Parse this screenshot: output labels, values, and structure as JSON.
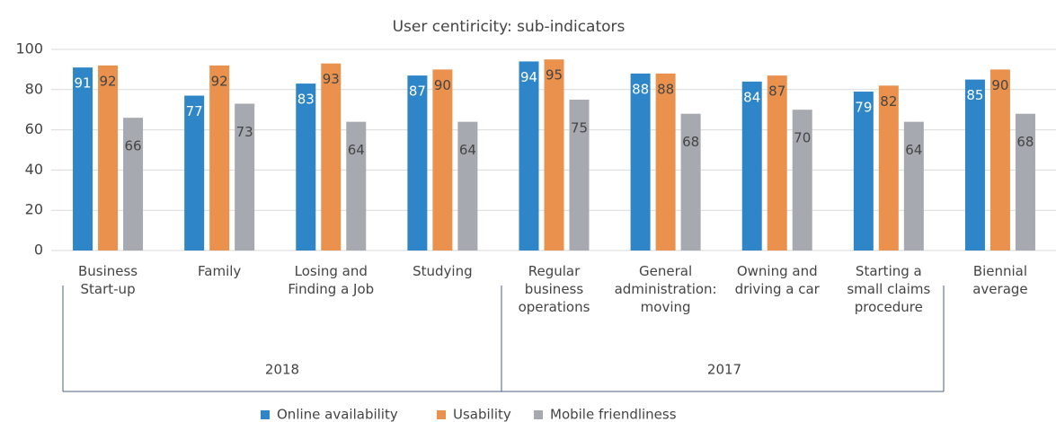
{
  "chart_data": {
    "type": "bar",
    "title": "User centiricity: sub-indicators",
    "categories": [
      [
        "Business",
        "Start-up"
      ],
      [
        "Family"
      ],
      [
        "Losing and",
        "Finding a Job"
      ],
      [
        "Studying"
      ],
      [
        "Regular",
        "business",
        "operations"
      ],
      [
        "General",
        "administration:",
        "moving"
      ],
      [
        "Owning and",
        "driving a car"
      ],
      [
        "Starting a",
        "small claims",
        "procedure"
      ],
      [
        "Biennial",
        "average"
      ]
    ],
    "groups": [
      "2018",
      "2017"
    ],
    "series": [
      {
        "name": "Online availability",
        "color": "#2e86c9",
        "values": [
          91,
          77,
          83,
          87,
          94,
          88,
          84,
          79,
          85
        ]
      },
      {
        "name": "Usability",
        "color": "#ea924d",
        "values": [
          92,
          92,
          93,
          90,
          95,
          88,
          87,
          82,
          90
        ]
      },
      {
        "name": "Mobile friendliness",
        "color": "#a6aab0",
        "values": [
          66,
          73,
          64,
          64,
          75,
          68,
          70,
          64,
          68
        ]
      }
    ],
    "ylim": [
      0,
      100
    ],
    "yticks": [
      0,
      20,
      40,
      60,
      80,
      100
    ],
    "grid": true,
    "legend": "bottom"
  }
}
